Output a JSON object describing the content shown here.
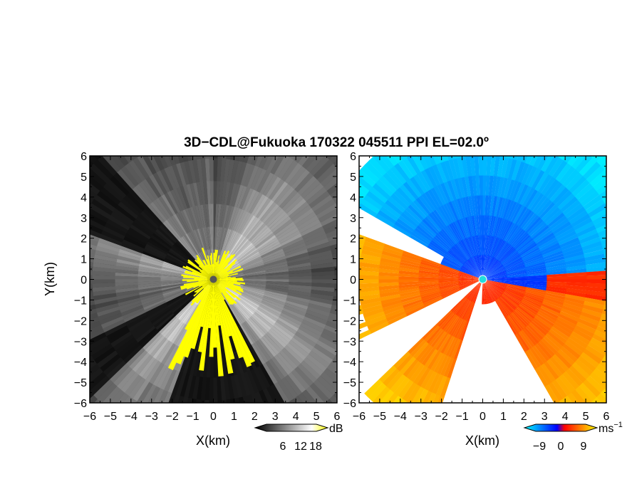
{
  "chart_data": {
    "type": "heatmap",
    "title": "3D−CDL@Fukuoka 170322 045511 PPI EL=02.0º",
    "panels": [
      {
        "id": "snr",
        "xlabel": "X(km)",
        "ylabel": "Y(km)",
        "xlim": [
          -6,
          6
        ],
        "ylim": [
          -6,
          6
        ],
        "xticks": [
          "−6",
          "−5",
          "−4",
          "−3",
          "−2",
          "−1",
          "0",
          "1",
          "2",
          "3",
          "4",
          "5",
          "6"
        ],
        "yticks": [
          "−6",
          "−5",
          "−4",
          "−3",
          "−2",
          "−1",
          "0",
          "1",
          "2",
          "3",
          "4",
          "5",
          "6"
        ],
        "colorbar": {
          "unit": "dB",
          "ticks": [
            "6",
            "12",
            "18"
          ],
          "colors": [
            "#000000",
            "#ffffff",
            "#ffff00"
          ]
        }
      },
      {
        "id": "velocity",
        "xlabel": "X(km)",
        "ylabel": "",
        "xlim": [
          -6,
          6
        ],
        "ylim": [
          -6,
          6
        ],
        "xticks": [
          "−6",
          "−5",
          "−4",
          "−3",
          "−2",
          "−1",
          "0",
          "1",
          "2",
          "3",
          "4",
          "5",
          "6"
        ],
        "yticks": [
          "−6",
          "−5",
          "−4",
          "−3",
          "−2",
          "−1",
          "0",
          "1",
          "2",
          "3",
          "4",
          "5",
          "6"
        ],
        "colorbar": {
          "unit": "ms",
          "unit_superscript": "−1",
          "ticks": [
            "−9",
            "0",
            "9"
          ],
          "colors": [
            "#00ffff",
            "#0000ff",
            "#ff0000",
            "#ffff00"
          ]
        }
      }
    ]
  }
}
